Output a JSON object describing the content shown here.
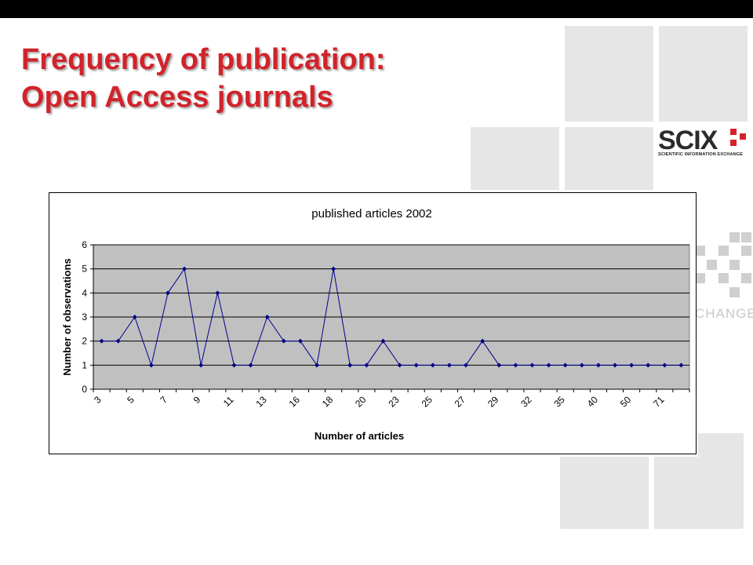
{
  "slide": {
    "title_line1": "Frequency of publication:",
    "title_line2": "Open Access journals"
  },
  "logo": {
    "wordmark": "SCIX",
    "subtitle": "SCIENTIFIC INFORMATION EXCHANGE",
    "watermark_text": "CHANGE"
  },
  "colors": {
    "title": "#d2232a",
    "series": "#00008b",
    "plot_bg": "#c0c0c0"
  },
  "chart_data": {
    "type": "line",
    "title": "published articles 2002",
    "xlabel": "Number of articles",
    "ylabel": "Number of observations",
    "ylim": [
      0,
      6
    ],
    "yticks": [
      0,
      1,
      2,
      3,
      4,
      5,
      6
    ],
    "grid": true,
    "legend": "none",
    "x_tick_labels": [
      "3",
      "5",
      "7",
      "9",
      "11",
      "13",
      "16",
      "18",
      "20",
      "23",
      "25",
      "27",
      "29",
      "32",
      "35",
      "40",
      "50",
      "71"
    ],
    "values": [
      2,
      2,
      3,
      1,
      4,
      5,
      1,
      4,
      1,
      1,
      3,
      2,
      2,
      1,
      5,
      1,
      1,
      2,
      1,
      1,
      1,
      1,
      1,
      2,
      1,
      1,
      1,
      1,
      1,
      1,
      1,
      1,
      1,
      1,
      1,
      1
    ]
  }
}
